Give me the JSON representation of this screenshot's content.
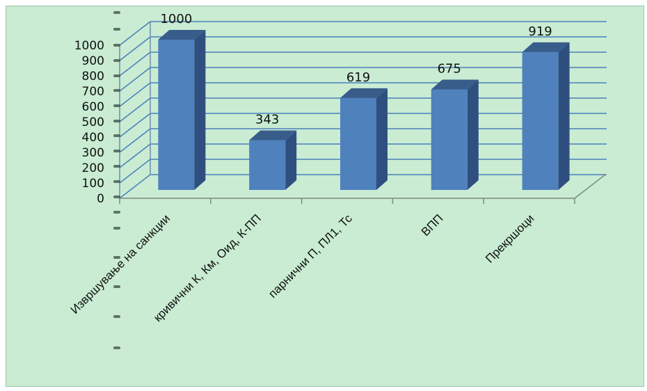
{
  "chart_data": {
    "type": "bar",
    "title": "",
    "xlabel": "",
    "ylabel": "",
    "categories": [
      "Извршување на санкции",
      "кривични  К,  Км, Оид, К-ПП",
      "парнични П, ПЛ1, Тс",
      "ВПП",
      "Прекршоци"
    ],
    "values": [
      1000,
      343,
      619,
      675,
      919
    ],
    "data_labels": [
      "1000",
      "343",
      "619",
      "675",
      "919"
    ],
    "y_ticks": [
      "0",
      "100",
      "200",
      "300",
      "400",
      "500",
      "600",
      "700",
      "800",
      "900",
      "1000"
    ],
    "ylim": [
      0,
      1000
    ],
    "grid": true,
    "legend": "none",
    "three_d": true,
    "colors": {
      "background": "#c9ecd3",
      "bar_front": "#4f81bd",
      "bar_side": "#2f4f7f",
      "bar_top": "#385d8a",
      "grid": "#4a7ebb"
    }
  }
}
